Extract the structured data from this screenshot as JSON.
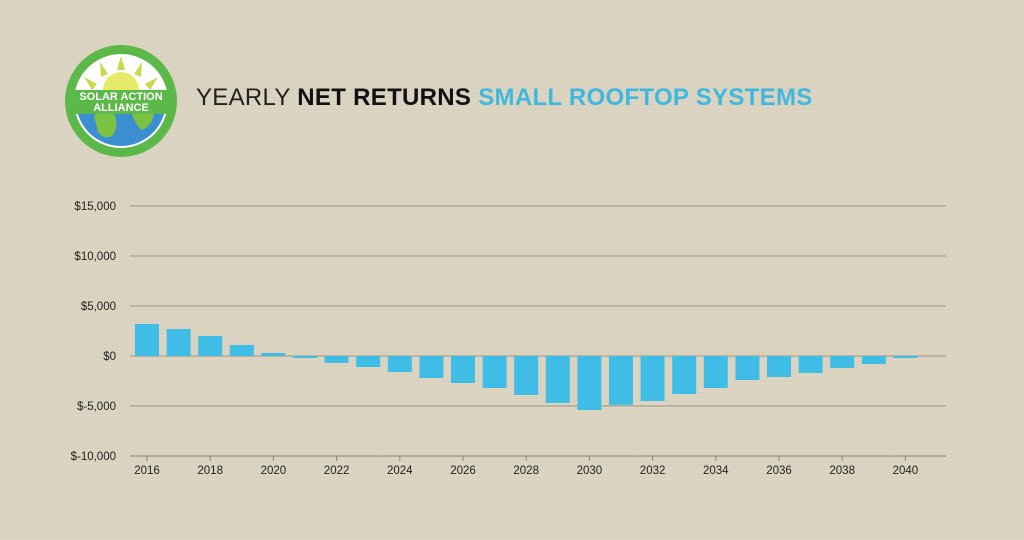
{
  "logo": {
    "line1": "SOLAR ACTION",
    "line2": "ALLIANCE",
    "colors": {
      "ring": "#5db84a",
      "sun": "#c7d84a",
      "globe_water": "#3b8fd0",
      "globe_land": "#7cc242"
    }
  },
  "title": {
    "part1": "YEARLY",
    "part2": "NET RETURNS",
    "part3": "SMALL ROOFTOP SYSTEMS"
  },
  "chart_data": {
    "type": "bar",
    "title": "YEARLY NET RETURNS SMALL ROOFTOP SYSTEMS",
    "xlabel": "",
    "ylabel": "",
    "ylim": [
      -10000,
      15000
    ],
    "yticks": [
      -10000,
      -5000,
      0,
      5000,
      10000,
      15000
    ],
    "ytick_labels": [
      "$-10,000",
      "$-5,000",
      "$0",
      "$5,000",
      "$10,000",
      "$15,000"
    ],
    "categories": [
      2016,
      2017,
      2018,
      2019,
      2020,
      2021,
      2022,
      2023,
      2024,
      2025,
      2026,
      2027,
      2028,
      2029,
      2030,
      2031,
      2032,
      2033,
      2034,
      2035,
      2036,
      2037,
      2038,
      2039,
      2040
    ],
    "xtick_labels": [
      "2016",
      "2018",
      "2020",
      "2022",
      "2024",
      "2026",
      "2028",
      "2030",
      "2032",
      "2034",
      "2036",
      "2038",
      "2040"
    ],
    "values": [
      3200,
      2700,
      2000,
      1100,
      300,
      -200,
      -700,
      -1100,
      -1600,
      -2200,
      -2700,
      -3200,
      -3900,
      -4700,
      -5400,
      -4900,
      -4500,
      -3800,
      -3200,
      -2400,
      -2100,
      -1700,
      -1200,
      -800,
      -200
    ],
    "grid": true,
    "legend": "none",
    "colors": {
      "bar": "#3fbde6",
      "grid": "#9b957f",
      "axis": "#8a846f"
    }
  }
}
